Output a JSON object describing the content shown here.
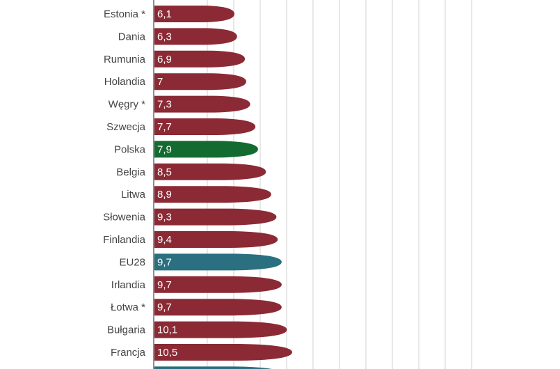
{
  "chart_data": {
    "type": "bar",
    "orientation": "horizontal",
    "categories": [
      "Estonia *",
      "Dania",
      "Rumunia",
      "Holandia",
      "Węgry *",
      "Szwecja",
      "Polska",
      "Belgia",
      "Litwa",
      "Słowenia",
      "Finlandia",
      "EU28",
      "Irlandia",
      "Łotwa *",
      "Bułgaria",
      "Francja"
    ],
    "values": [
      6.1,
      6.3,
      6.9,
      7,
      7.3,
      7.7,
      7.9,
      8.5,
      8.9,
      9.3,
      9.4,
      9.7,
      9.7,
      9.7,
      10.1,
      10.5
    ],
    "value_labels": [
      "6,1",
      "6,3",
      "6,9",
      "7",
      "7,3",
      "7,7",
      "7,9",
      "8,5",
      "8,9",
      "9,3",
      "9,4",
      "9,7",
      "9,7",
      "9,7",
      "10,1",
      "10,5"
    ],
    "bar_colors": [
      "#8b2a35",
      "#8b2a35",
      "#8b2a35",
      "#8b2a35",
      "#8b2a35",
      "#8b2a35",
      "#136b2f",
      "#8b2a35",
      "#8b2a35",
      "#8b2a35",
      "#8b2a35",
      "#2a7080",
      "#8b2a35",
      "#8b2a35",
      "#8b2a35",
      "#8b2a35"
    ],
    "partial_next_bar_color": "#2a7080",
    "grid": true,
    "legend": "none"
  },
  "colors": {
    "default_bar": "#8b2a35",
    "highlight_poland": "#136b2f",
    "highlight_eu": "#2a7080",
    "grid_line": "#d0d0d0",
    "axis_line": "#444444",
    "label_text": "#444444"
  }
}
